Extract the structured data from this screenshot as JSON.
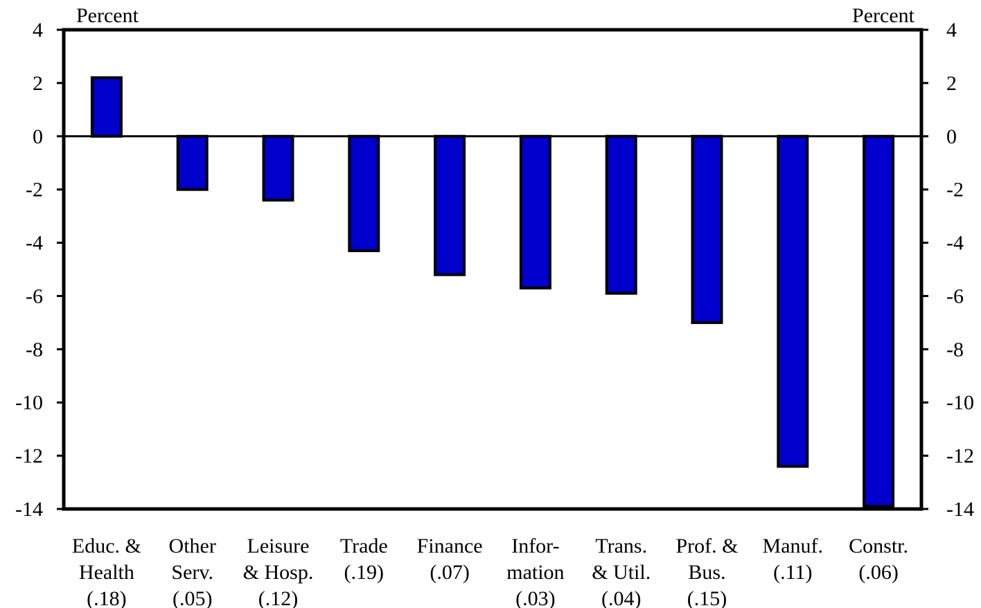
{
  "chart_data": {
    "type": "bar",
    "left_axis_unit": "Percent",
    "right_axis_unit": "Percent",
    "ylim": [
      -14,
      4
    ],
    "yticks": [
      "4",
      "2",
      "0",
      "-2",
      "-4",
      "-6",
      "-8",
      "-10",
      "-12",
      "-14"
    ],
    "ytick_values": [
      4,
      2,
      0,
      -2,
      -4,
      -6,
      -8,
      -10,
      -12,
      -14
    ],
    "grid": false,
    "legend": "none",
    "bar_color": "#0000CC",
    "categories": [
      {
        "lines": [
          "Educ. &",
          "Health",
          "(.18)"
        ]
      },
      {
        "lines": [
          "Other",
          "Serv.",
          "(.05)"
        ]
      },
      {
        "lines": [
          "Leisure",
          "& Hosp.",
          "(.12)"
        ]
      },
      {
        "lines": [
          "Trade",
          "(.19)"
        ]
      },
      {
        "lines": [
          "Finance",
          "(.07)"
        ]
      },
      {
        "lines": [
          "Infor-",
          "mation",
          "(.03)"
        ]
      },
      {
        "lines": [
          "Trans.",
          "& Util.",
          "(.04)"
        ]
      },
      {
        "lines": [
          "Prof. &",
          "Bus.",
          "(.15)"
        ]
      },
      {
        "lines": [
          "Manuf.",
          "(.11)"
        ]
      },
      {
        "lines": [
          "Constr.",
          "(.06)"
        ]
      }
    ],
    "values": [
      2.2,
      -2.0,
      -2.4,
      -4.3,
      -5.2,
      -5.7,
      -5.9,
      -7.0,
      -12.4,
      -13.9
    ]
  }
}
